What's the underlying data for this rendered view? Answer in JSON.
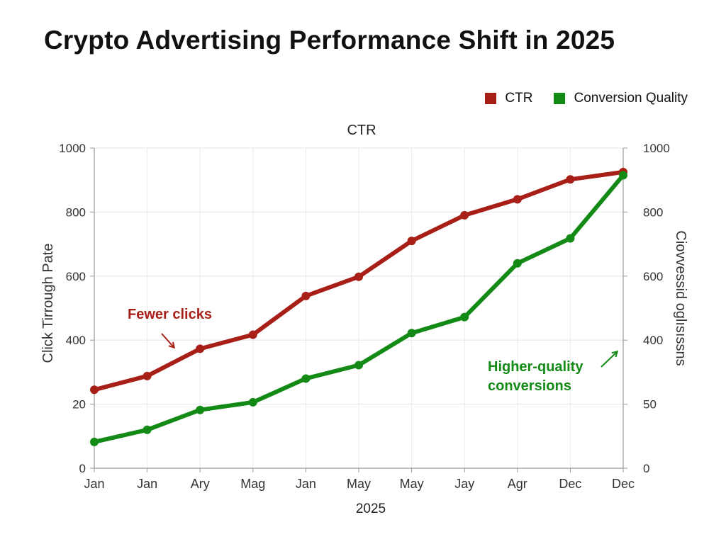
{
  "chart_data": {
    "type": "line",
    "title": "Crypto Advertising Performance Shift in 2025",
    "subtitle": "CTR",
    "xlabel": "2025",
    "ylabel_left": "Click Tirrough Pate",
    "ylabel_right": "Ciovvessid oglısıssns",
    "categories": [
      "Jan",
      "Jan",
      "Ary",
      "Mag",
      "Jan",
      "May",
      "May",
      "Jay",
      "Agr",
      "Dec",
      "Dec"
    ],
    "left_axis": {
      "ylim": [
        0,
        1000
      ],
      "tick_labels": [
        "0",
        "20",
        "400",
        "600",
        "800",
        "1000"
      ]
    },
    "right_axis": {
      "ylim": [
        0,
        1000
      ],
      "tick_labels": [
        "0",
        "50",
        "400",
        "600",
        "800",
        "1000"
      ]
    },
    "grid": true,
    "legend_position": "top-right",
    "series": [
      {
        "name": "CTR",
        "color": "#a81f17",
        "values": [
          245,
          288,
          373,
          417,
          538,
          598,
          710,
          790,
          840,
          902,
          925
        ]
      },
      {
        "name": "Conversion Quality",
        "color": "#138a15",
        "values": [
          82,
          120,
          182,
          206,
          280,
          322,
          422,
          472,
          640,
          718,
          915
        ]
      }
    ],
    "annotations": [
      {
        "text": "Fewer clicks",
        "color": "#a81f17"
      },
      {
        "text": "Higher-quality conversions",
        "line1": "Higher-quality",
        "line2": "conversions",
        "color": "#138a15"
      }
    ]
  }
}
